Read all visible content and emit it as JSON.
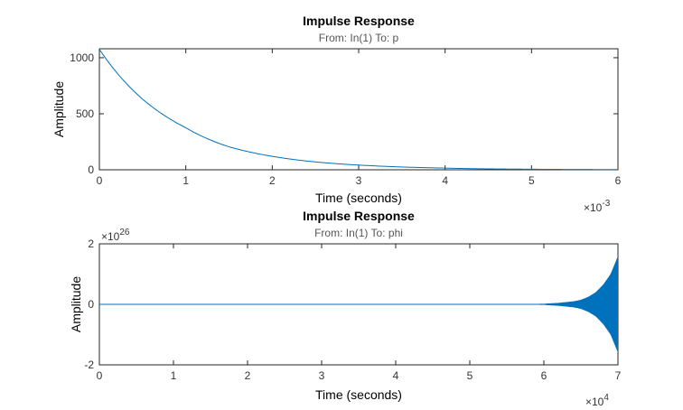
{
  "chart_data": [
    {
      "type": "line",
      "title": "Impulse Response",
      "subtitle": "From: In(1)  To: p",
      "xlabel": "Time (seconds)",
      "ylabel": "Amplitude",
      "xlim": [
        0,
        6
      ],
      "ylim": [
        0,
        1080
      ],
      "x_exponent_label": "×10",
      "x_exponent_power": "-3",
      "xticks": [
        "0",
        "1",
        "2",
        "3",
        "4",
        "5",
        "6"
      ],
      "yticks": [
        "0",
        "500",
        "1000"
      ],
      "series": [
        {
          "color": "#0072BD",
          "x": [
            0,
            0.5,
            1,
            1.5,
            2,
            2.5,
            3,
            3.5,
            4,
            4.5,
            5,
            5.5,
            6
          ],
          "y": [
            1075,
            630,
            375,
            205,
            120,
            70,
            42,
            25,
            15,
            8,
            5,
            3,
            2
          ]
        }
      ]
    },
    {
      "type": "line",
      "title": "Impulse Response",
      "subtitle": "From: In(1)  To: phi",
      "xlabel": "Time (seconds)",
      "ylabel": "Amplitude",
      "xlim": [
        0,
        7
      ],
      "ylim": [
        -2,
        2
      ],
      "x_exponent_label": "×10",
      "x_exponent_power": "4",
      "y_exponent_label": "×10",
      "y_exponent_power": "26",
      "xticks": [
        "0",
        "1",
        "2",
        "3",
        "4",
        "5",
        "6",
        "7"
      ],
      "yticks": [
        "-2",
        "0",
        "2"
      ],
      "series": [
        {
          "color": "#0072BD",
          "style": "oscillating-envelope",
          "x": [
            0,
            5.5,
            5.8,
            6.0,
            6.2,
            6.4,
            6.5,
            6.6,
            6.7,
            6.8,
            6.9,
            7.0
          ],
          "y_envelope": [
            0,
            0.0,
            0.01,
            0.02,
            0.05,
            0.1,
            0.15,
            0.25,
            0.4,
            0.65,
            1.0,
            1.6
          ]
        }
      ]
    }
  ]
}
